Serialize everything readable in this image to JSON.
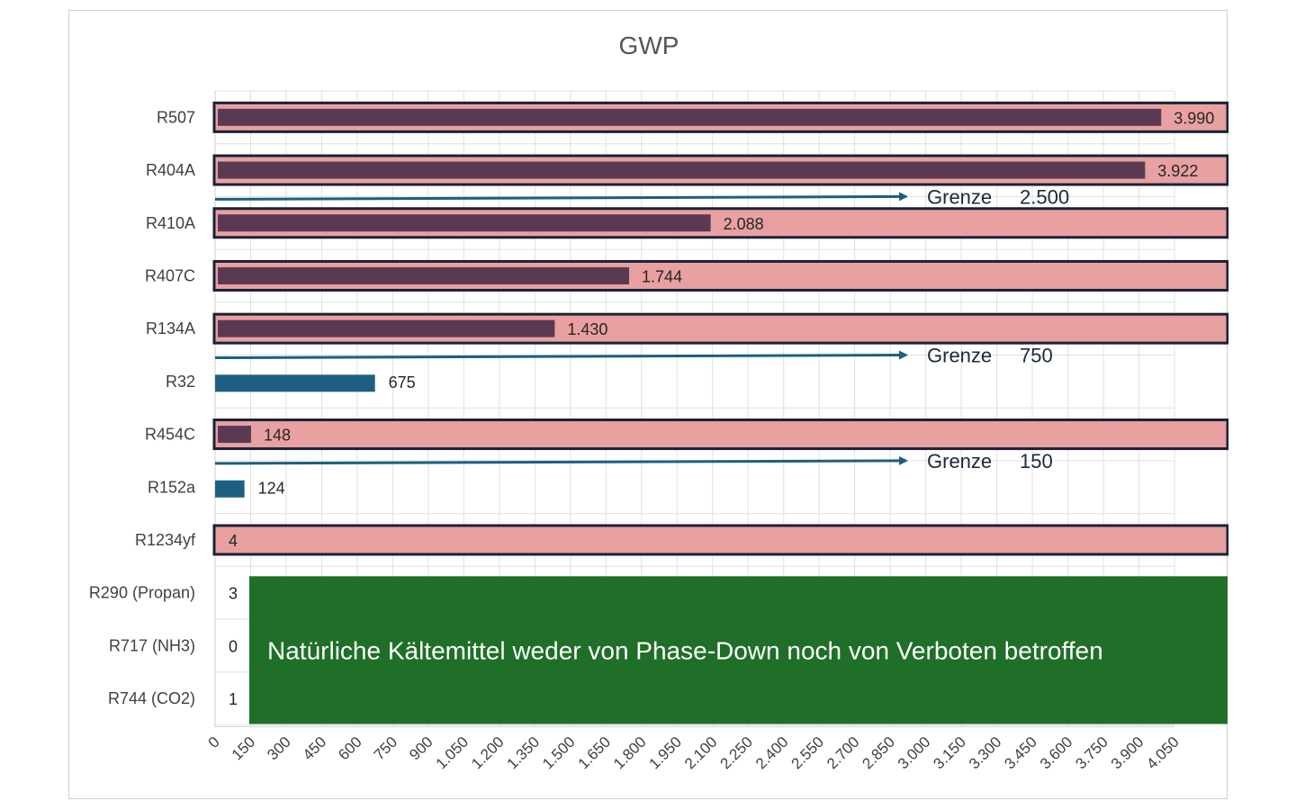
{
  "chart_data": {
    "type": "bar",
    "orientation": "horizontal",
    "title": "GWP",
    "xlim": [
      0,
      4050
    ],
    "x_ticks": [
      "0",
      "150",
      "300",
      "450",
      "600",
      "750",
      "900",
      "1.050",
      "1.200",
      "1.350",
      "1.500",
      "1.650",
      "1.800",
      "1.950",
      "2.100",
      "2.250",
      "2.400",
      "2.550",
      "2.700",
      "2.850",
      "3.000",
      "3.150",
      "3.300",
      "3.450",
      "3.600",
      "3.750",
      "3.900",
      "4.050"
    ],
    "tick_step": 150,
    "grid": true,
    "categories": [
      "R507",
      "R404A",
      "R410A",
      "R407C",
      "R134A",
      "R32",
      "R454C",
      "R152a",
      "R1234yf",
      "R290 (Propan)",
      "R717 (NH3)",
      "R744 (CO2)"
    ],
    "values": [
      3990,
      3922,
      2088,
      1744,
      1430,
      675,
      148,
      124,
      4,
      3,
      0,
      1
    ],
    "value_labels": [
      "3.990",
      "3.922",
      "2.088",
      "1.744",
      "1.430",
      "675",
      "148",
      "124",
      "4",
      "3",
      "0",
      "1"
    ],
    "highlighted": [
      true,
      true,
      true,
      true,
      true,
      false,
      true,
      false,
      true,
      false,
      false,
      false
    ],
    "limits": [
      {
        "label": "Grenze",
        "value_label": "2.500",
        "after_category": "R404A"
      },
      {
        "label": "Grenze",
        "value_label": "750",
        "after_category": "R134A"
      },
      {
        "label": "Grenze",
        "value_label": "150",
        "after_category": "R454C"
      }
    ],
    "note": "Natürliche Kältemittel weder von Phase-Down noch von Verboten betroffen",
    "colors": {
      "bar_highlighted": "#5a3a52",
      "bar_normal": "#1c5f80",
      "highlight_fill": "#e8a0a0",
      "highlight_border": "#1a2238",
      "limit_arrow": "#1c5f80",
      "note_box": "#1f6f28",
      "grid": "#e0e0e0"
    }
  }
}
